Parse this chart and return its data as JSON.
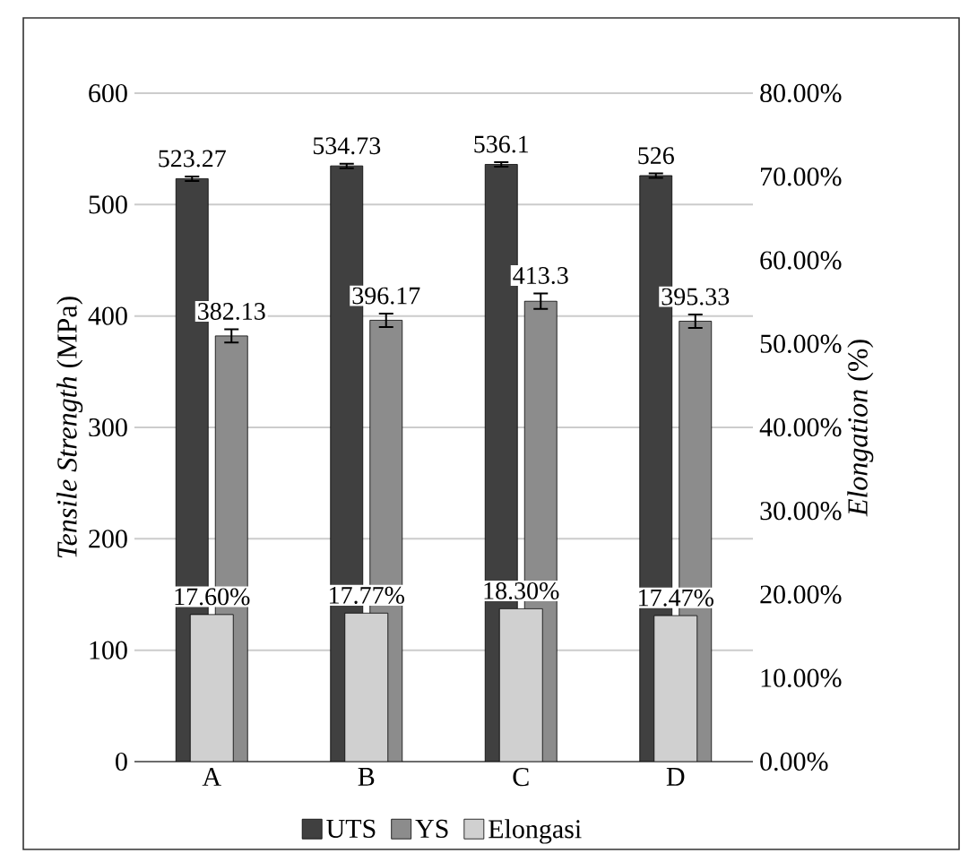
{
  "chart_data": {
    "type": "bar",
    "ylabel": "*Tensile Strength* (MPa)",
    "y2label": "*Elongation*  (%)",
    "categories": [
      "A",
      "B",
      "C",
      "D"
    ],
    "series": [
      {
        "name": "UTS",
        "color": "#404040",
        "values": [
          523.27,
          534.73,
          536.1,
          526
        ],
        "errors": [
          2,
          2,
          2,
          2
        ],
        "value_labels": [
          "523.27",
          "534.73",
          "536.1",
          "526"
        ]
      },
      {
        "name": "YS",
        "color": "#8c8c8c",
        "values": [
          382.13,
          396.17,
          413.3,
          395.33
        ],
        "errors": [
          6,
          6,
          7,
          6
        ],
        "value_labels": [
          "382.13",
          "396.17",
          "413.3",
          "395.33"
        ]
      },
      {
        "name": "Elongasi",
        "color": "#d0d0d0",
        "axis": "y2",
        "values": [
          17.6,
          17.77,
          18.3,
          17.47
        ],
        "value_labels": [
          "17.60%",
          "17.77%",
          "18.30%",
          "17.47%"
        ]
      }
    ],
    "ylim": [
      0,
      600
    ],
    "yticks": [
      0,
      100,
      200,
      300,
      400,
      500,
      600
    ],
    "y2lim": [
      0,
      80
    ],
    "y2ticks": [
      {
        "value": 0,
        "label": "0.00%"
      },
      {
        "value": 10,
        "label": "10.00%"
      },
      {
        "value": 20,
        "label": "20.00%"
      },
      {
        "value": 30,
        "label": "30.00%"
      },
      {
        "value": 40,
        "label": "40.00%"
      },
      {
        "value": 50,
        "label": "50.00%"
      },
      {
        "value": 60,
        "label": "60.00%"
      },
      {
        "value": 70,
        "label": "70.00%"
      },
      {
        "value": 80,
        "label": "80.00%"
      }
    ],
    "grid": "y",
    "legend": "bottom"
  }
}
